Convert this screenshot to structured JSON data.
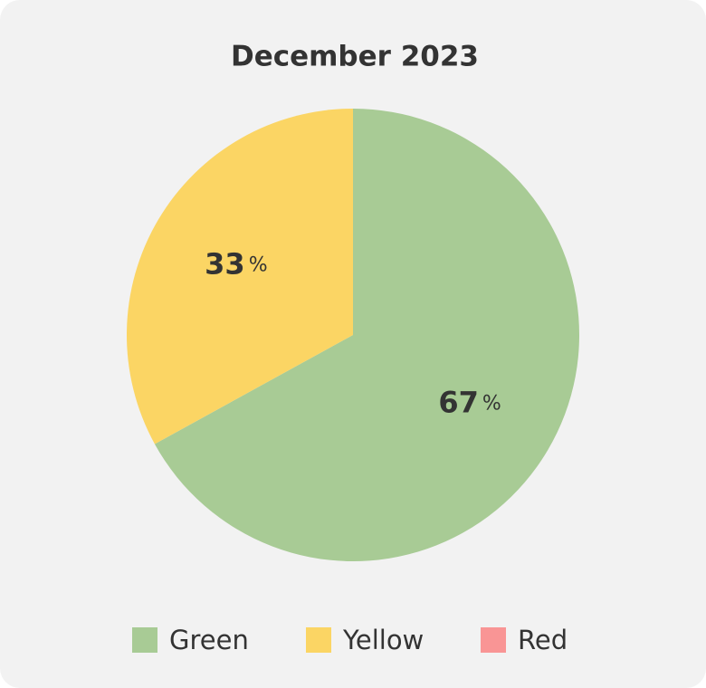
{
  "chart_data": {
    "type": "pie",
    "title": "December 2023",
    "categories": [
      "Green",
      "Yellow",
      "Red"
    ],
    "values": [
      67,
      33,
      0
    ],
    "value_labels": [
      "67%",
      "33%",
      null
    ],
    "colors": [
      "#a8cb95",
      "#fbd564",
      "#f99595"
    ],
    "legend": "bottom"
  }
}
